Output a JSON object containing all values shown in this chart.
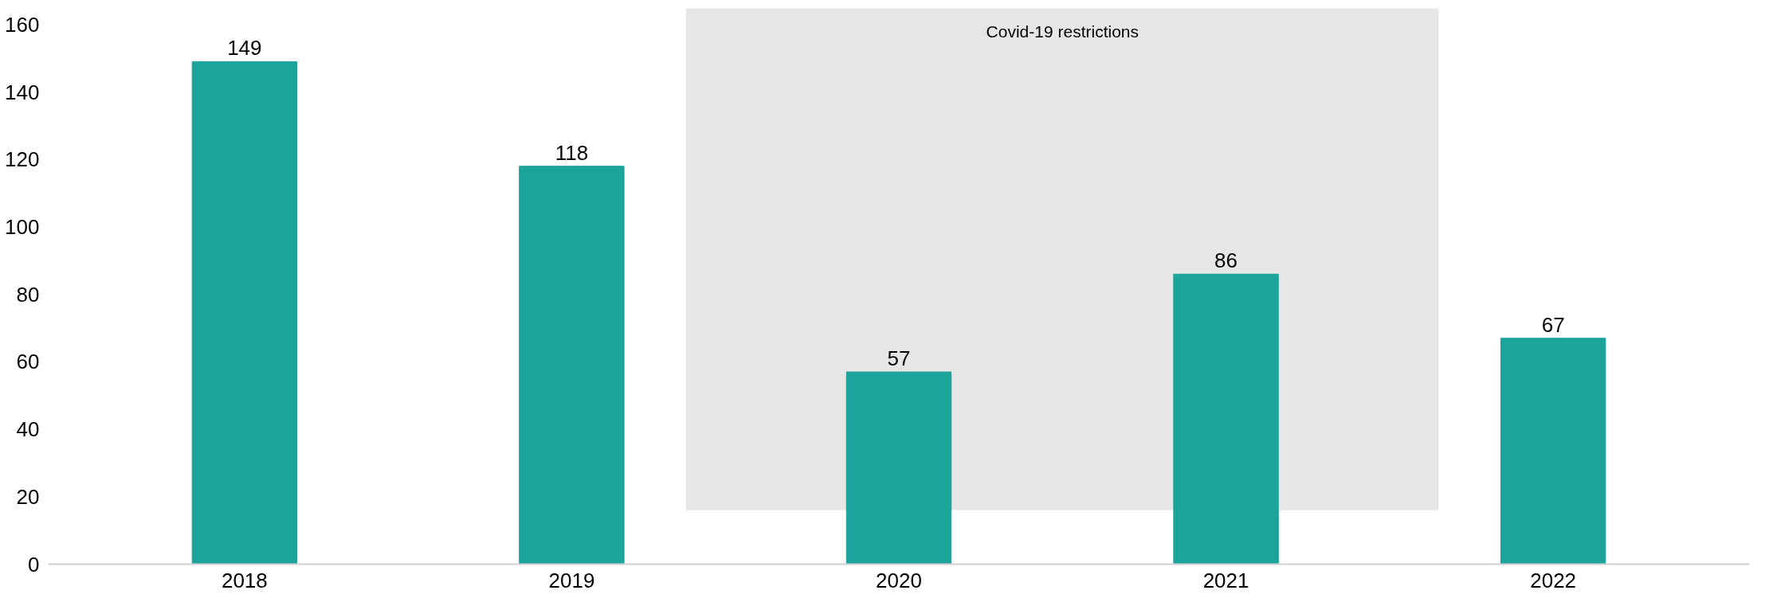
{
  "chart_data": {
    "type": "bar",
    "x": [
      2018,
      2019,
      2020,
      2021,
      2022
    ],
    "values": [
      149,
      118,
      57,
      86,
      67
    ],
    "color": "#1ca39b",
    "xlim": [
      2017.4,
      2022.6
    ],
    "xticks": [
      2018,
      2019,
      2020,
      2021,
      2022
    ],
    "ylim": [
      0,
      160
    ],
    "yticks": [
      0,
      20,
      40,
      60,
      80,
      100,
      120,
      140,
      160
    ],
    "grid": false,
    "data_labels": true,
    "bands": [
      {
        "axis": "x",
        "from": 2019.35,
        "to": 2021.65,
        "label": "Covid-19 restrictions",
        "color": "#e6e6e6"
      }
    ]
  }
}
